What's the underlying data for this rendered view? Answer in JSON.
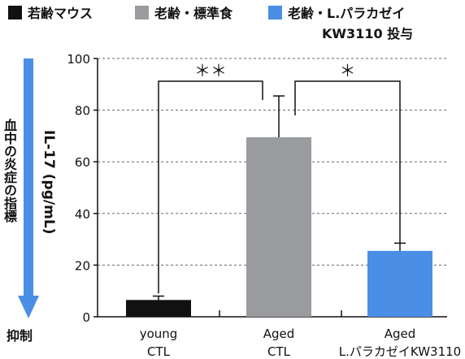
{
  "legend": [
    {
      "label": "若齢マウス",
      "color": "#111111"
    },
    {
      "label": "老齢・標準食",
      "color": "#9a9b9f"
    },
    {
      "label": "老齢・L.パラカゼイ",
      "label_line2": "KW3110 投与",
      "color": "#4a8ee6"
    }
  ],
  "side_arrow": {
    "top_label": "血中の炎症の指標",
    "bottom_label": "抑制",
    "color": "#4a8ee6"
  },
  "chart_data": {
    "type": "bar",
    "ylabel": "IL-17 (pg/mL)",
    "ylim": [
      0,
      100
    ],
    "yticks": [
      0,
      20,
      40,
      60,
      80,
      100
    ],
    "grid": true,
    "categories": [
      [
        "young",
        "CTL"
      ],
      [
        "Aged",
        "CTL"
      ],
      [
        "Aged",
        "L.パラカゼイKW3110"
      ]
    ],
    "values": [
      6.5,
      69.5,
      25.5
    ],
    "errors": [
      1.5,
      16,
      3
    ],
    "colors": [
      "#111111",
      "#9a9b9f",
      "#4a8ee6"
    ],
    "significance": [
      {
        "between": [
          0,
          1
        ],
        "label": "＊＊"
      },
      {
        "between": [
          1,
          2
        ],
        "label": "＊"
      }
    ]
  }
}
